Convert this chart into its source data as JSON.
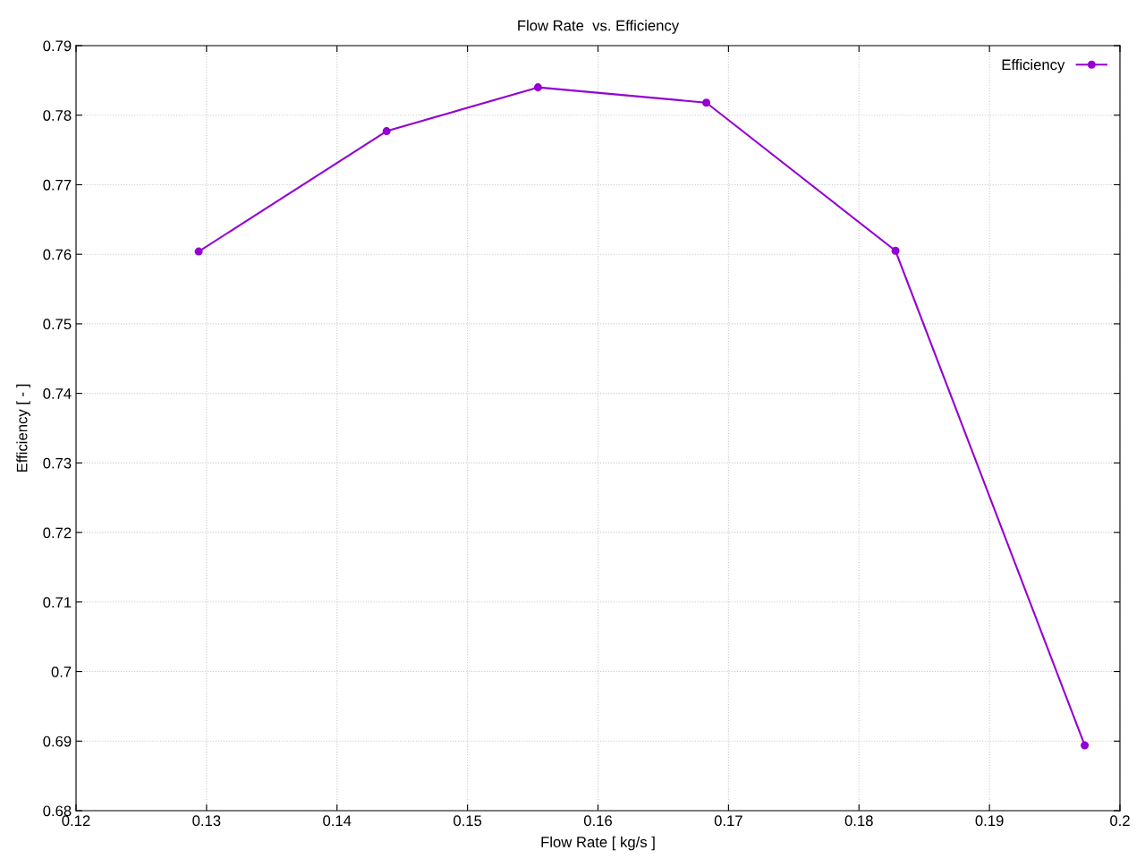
{
  "chart_data": {
    "type": "line",
    "title": "Flow Rate  vs. Efficiency",
    "xlabel": "Flow Rate [ kg/s ]",
    "ylabel": "Efficiency [ - ]",
    "x": [
      0.1294,
      0.1438,
      0.1554,
      0.1683,
      0.1828,
      0.1973
    ],
    "series": [
      {
        "name": "Efficiency",
        "color": "#9400d3",
        "values": [
          0.7604,
          0.7777,
          0.784,
          0.7818,
          0.7605,
          0.6894
        ]
      }
    ],
    "xlim": [
      0.12,
      0.2
    ],
    "xticks": [
      0.12,
      0.13,
      0.14,
      0.15,
      0.16,
      0.17,
      0.18,
      0.19,
      0.2
    ],
    "ylim": [
      0.68,
      0.79
    ],
    "yticks": [
      0.68,
      0.69,
      0.7,
      0.71,
      0.72,
      0.73,
      0.74,
      0.75,
      0.76,
      0.77,
      0.78,
      0.79
    ],
    "grid": true,
    "legend": "top right",
    "marker": "circle",
    "line_style": "solid"
  }
}
